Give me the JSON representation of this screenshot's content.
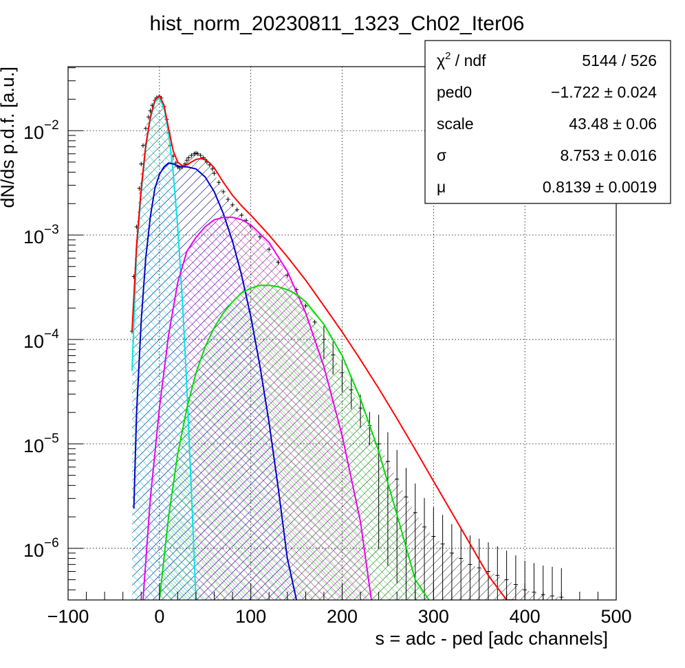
{
  "chart_data": {
    "type": "line",
    "title": "hist_norm_20230811_1323_Ch02_Iter06",
    "xlabel": "s = adc - ped [adc channels]",
    "ylabel": "dN/ds p.d.f. [a.u.]",
    "xlim": [
      -100,
      500
    ],
    "ylim": [
      3.2e-07,
      0.041
    ],
    "yscale": "log",
    "grid": true,
    "x_ticks": [
      {
        "value": -100,
        "label": "−100"
      },
      {
        "value": 0,
        "label": "0"
      },
      {
        "value": 100,
        "label": "100"
      },
      {
        "value": 200,
        "label": "200"
      },
      {
        "value": 300,
        "label": "300"
      },
      {
        "value": 400,
        "label": "400"
      },
      {
        "value": 500,
        "label": "500"
      }
    ],
    "y_ticks": [
      {
        "value": 1e-06,
        "base": "10",
        "exp": "−6"
      },
      {
        "value": 1e-05,
        "base": "10",
        "exp": "−5"
      },
      {
        "value": 0.0001,
        "base": "10",
        "exp": "−4"
      },
      {
        "value": 0.001,
        "base": "10",
        "exp": "−3"
      },
      {
        "value": 0.01,
        "base": "10",
        "exp": "−2"
      }
    ],
    "stats_box": {
      "placement": "top-right",
      "rows": [
        {
          "label_main": "χ",
          "label_sup": "2",
          "label_rest": " / ndf",
          "value": "5144 / 526"
        },
        {
          "label_main": "ped0",
          "label_sup": "",
          "label_rest": "",
          "value": "−1.722 ± 0.024"
        },
        {
          "label_main": "scale",
          "label_sup": "",
          "label_rest": "",
          "value": "43.48 ± 0.06"
        },
        {
          "label_main": "σ",
          "label_sup": "",
          "label_rest": "",
          "value": "8.753 ± 0.016"
        },
        {
          "label_main": "μ",
          "label_sup": "",
          "label_rest": "",
          "value": "0.8139 ± 0.0019"
        }
      ]
    },
    "series": [
      {
        "key": "histogram",
        "color": "#000000",
        "style": "error-bars",
        "x": [
          -30,
          -28,
          -25,
          -22,
          -20,
          -18,
          -15,
          -12,
          -10,
          -8,
          -5,
          -3,
          0,
          2,
          5,
          8,
          10,
          12,
          15,
          18,
          20,
          22,
          25,
          28,
          30,
          32,
          35,
          38,
          40,
          42,
          45,
          48,
          50,
          52,
          55,
          58,
          60,
          65,
          70,
          75,
          80,
          85,
          90,
          95,
          100,
          110,
          120,
          130,
          140,
          150,
          160,
          170,
          180,
          190,
          200,
          210,
          220,
          230,
          240,
          250,
          260,
          270,
          280,
          290,
          300,
          310,
          320,
          330,
          340,
          350,
          360,
          370,
          380,
          390,
          400,
          410,
          420,
          430,
          440
        ],
        "y": [
          0.00012,
          0.0004,
          0.0012,
          0.0028,
          0.0048,
          0.0072,
          0.0105,
          0.0135,
          0.0155,
          0.0175,
          0.0195,
          0.0207,
          0.0212,
          0.0205,
          0.017,
          0.0128,
          0.0095,
          0.0072,
          0.0057,
          0.0049,
          0.0045,
          0.0044,
          0.0045,
          0.0048,
          0.0052,
          0.0055,
          0.0058,
          0.006,
          0.0061,
          0.006,
          0.0058,
          0.0055,
          0.0053,
          0.005,
          0.0047,
          0.0043,
          0.0039,
          0.0032,
          0.0026,
          0.0022,
          0.00195,
          0.00175,
          0.00155,
          0.00138,
          0.00122,
          0.00096,
          0.00073,
          0.00055,
          0.00041,
          0.0003,
          0.00021,
          0.000147,
          0.0001,
          7.1e-05,
          4.8e-05,
          3.3e-05,
          2.2e-05,
          1.5e-05,
          1e-05,
          6.8e-06,
          4.6e-06,
          3.1e-06,
          2.2e-06,
          1.6e-06,
          1.3e-06,
          1.1e-06,
          9e-07,
          8e-07,
          7e-07,
          6.5e-07,
          6e-07,
          5.5e-07,
          5e-07,
          4.5e-07,
          4e-07,
          3.8e-07,
          3.6e-07,
          3.5e-07,
          3.4e-07
        ]
      },
      {
        "key": "total-fit",
        "color": "#ff0000",
        "style": "line",
        "x": [
          -30,
          -25,
          -20,
          -15,
          -10,
          -5,
          0,
          5,
          10,
          15,
          20,
          25,
          30,
          35,
          40,
          45,
          50,
          55,
          60,
          70,
          80,
          90,
          100,
          120,
          140,
          160,
          180,
          200,
          220,
          240,
          260,
          280,
          300,
          320,
          340,
          360,
          380,
          390
        ],
        "y": [
          0.00012,
          0.0008,
          0.0028,
          0.0072,
          0.0135,
          0.0195,
          0.0218,
          0.0175,
          0.0105,
          0.0064,
          0.005,
          0.0046,
          0.0047,
          0.005,
          0.0053,
          0.0054,
          0.0053,
          0.0049,
          0.0044,
          0.0032,
          0.0024,
          0.0019,
          0.00155,
          0.001,
          0.00062,
          0.00037,
          0.00021,
          0.000118,
          6.4e-05,
          3.4e-05,
          1.75e-05,
          8.8e-06,
          4.4e-06,
          2.2e-06,
          1.1e-06,
          5.5e-07,
          3.2e-07,
          2.6e-07
        ]
      },
      {
        "key": "pedestal",
        "color": "#00e5e5",
        "style": "filled-line",
        "x": [
          -30,
          -25,
          -20,
          -15,
          -10,
          -5,
          0,
          5,
          10,
          15,
          20,
          25,
          30,
          35,
          40
        ],
        "y": [
          5e-05,
          0.0007,
          0.0025,
          0.0068,
          0.013,
          0.019,
          0.0205,
          0.0165,
          0.0095,
          0.004,
          0.0012,
          0.00025,
          3.5e-05,
          3.5e-06,
          3.2e-07
        ]
      },
      {
        "key": "1pe",
        "color": "#0000cc",
        "style": "filled-line",
        "x": [
          -28,
          -25,
          -20,
          -15,
          -10,
          -5,
          0,
          5,
          10,
          15,
          20,
          25,
          30,
          40,
          50,
          60,
          70,
          80,
          90,
          100,
          110,
          120,
          130,
          140,
          150
        ],
        "y": [
          2.4e-06,
          2e-05,
          0.00015,
          0.0006,
          0.0015,
          0.0028,
          0.0038,
          0.0045,
          0.0049,
          0.0048,
          0.0046,
          0.0045,
          0.0045,
          0.0043,
          0.0036,
          0.0026,
          0.0016,
          0.00087,
          0.00041,
          0.000165,
          5.6e-05,
          1.6e-05,
          3.8e-06,
          8e-07,
          3.2e-07
        ]
      },
      {
        "key": "2pe",
        "color": "#ee00ee",
        "style": "filled-line",
        "x": [
          -18,
          -10,
          0,
          10,
          20,
          30,
          40,
          50,
          60,
          70,
          80,
          90,
          100,
          120,
          140,
          160,
          180,
          200,
          220,
          232
        ],
        "y": [
          3.2e-07,
          3e-06,
          2.2e-05,
          0.00011,
          0.00035,
          0.0007,
          0.00095,
          0.0012,
          0.0014,
          0.00148,
          0.00148,
          0.0014,
          0.00125,
          0.00085,
          0.00045,
          0.00018,
          5.5e-05,
          1.2e-05,
          1.8e-06,
          3.2e-07
        ]
      },
      {
        "key": "3pe",
        "color": "#00dd00",
        "style": "filled-line",
        "x": [
          0,
          10,
          20,
          30,
          40,
          50,
          60,
          70,
          80,
          90,
          100,
          110,
          120,
          130,
          140,
          150,
          160,
          180,
          200,
          220,
          240,
          260,
          280,
          295
        ],
        "y": [
          3.2e-07,
          2e-06,
          8e-06,
          2.2e-05,
          4.8e-05,
          8.5e-05,
          0.00013,
          0.00018,
          0.00023,
          0.00028,
          0.00031,
          0.00033,
          0.00033,
          0.00032,
          0.0003,
          0.00027,
          0.00023,
          0.00014,
          7e-05,
          2.7e-05,
          8.5e-06,
          2.1e-06,
          5e-07,
          3.2e-07
        ]
      }
    ]
  }
}
